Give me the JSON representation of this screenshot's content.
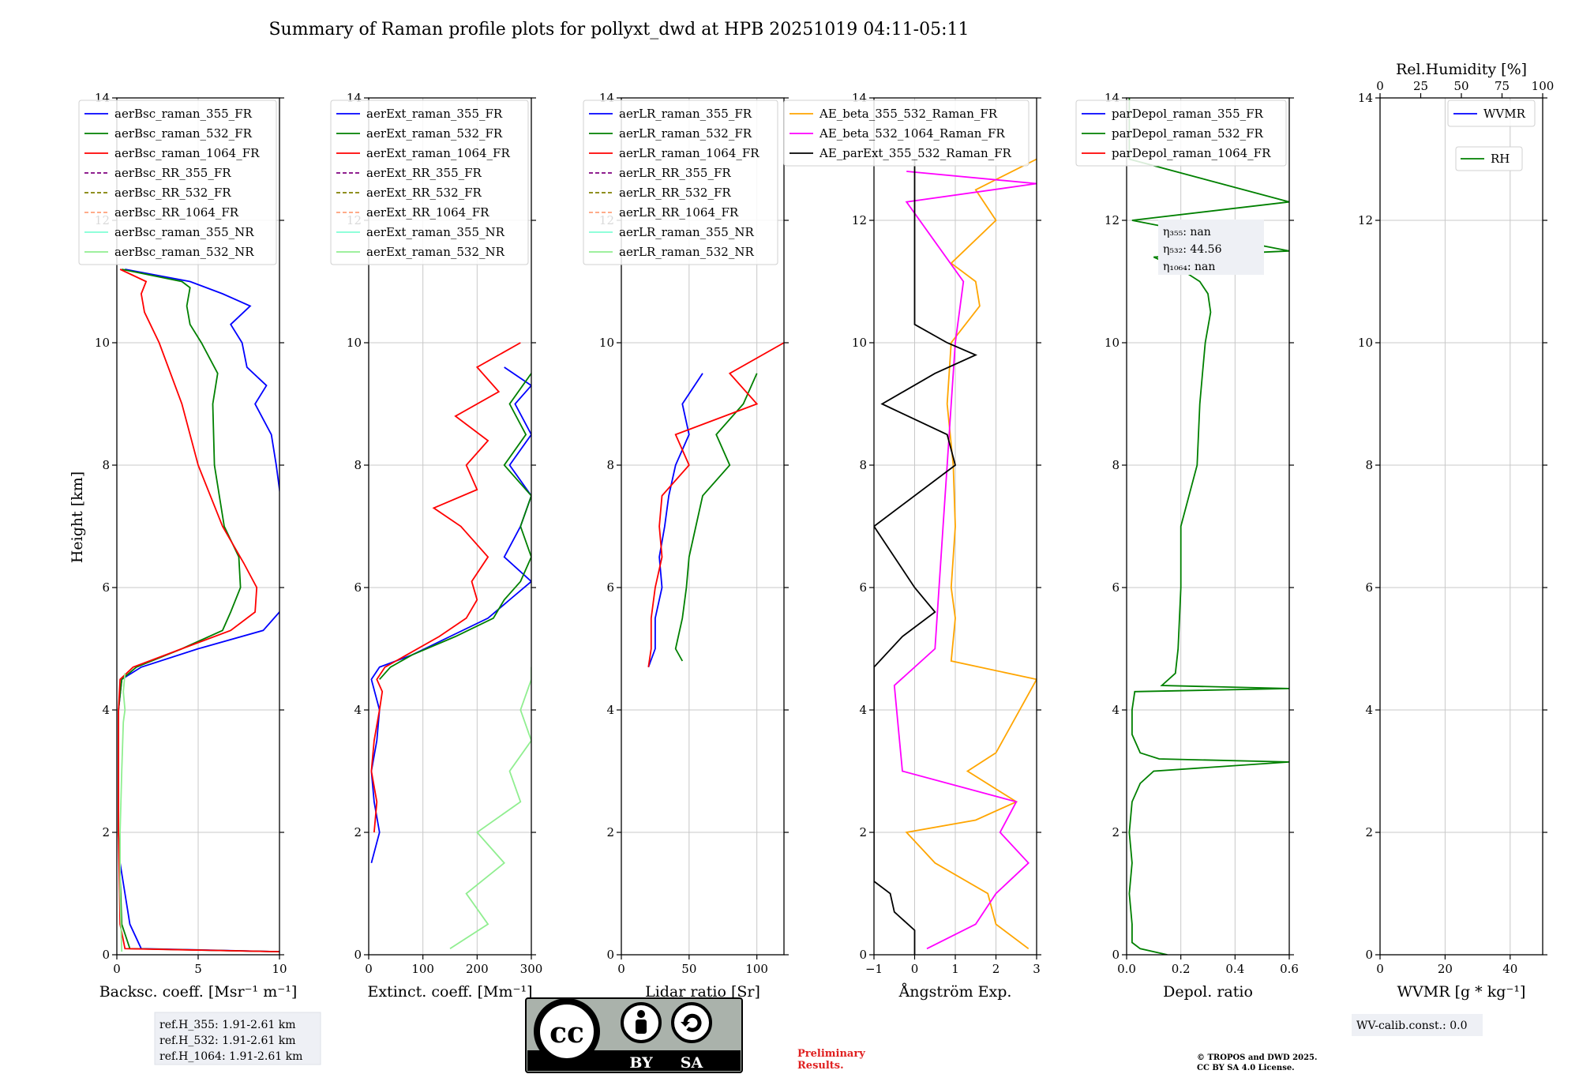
{
  "figure": {
    "title": "Summary of Raman profile plots for pollyxt_dwd at HPB 20251019 04:11-05:11",
    "ylabel": "Height [km]"
  },
  "colors": {
    "c355": "#0000ff",
    "c532": "#008000",
    "c1064": "#ff0000",
    "rr355": "#800080",
    "rr532": "#808000",
    "rr1064": "#ffa07a",
    "nr355": "#7fffd4",
    "nr532": "#90ee90",
    "ae1": "#ffa500",
    "ae2": "#ff00ff",
    "ae3": "#000000"
  },
  "chart_data": [
    {
      "type": "line",
      "id": "bsc",
      "xlabel": "Backsc. coeff. [Msr⁻¹ m⁻¹]",
      "xlim": [
        0,
        10
      ],
      "xticks": [
        "0",
        "5",
        "10"
      ],
      "xtickvals": [
        0,
        5,
        10
      ],
      "ylim": [
        0,
        14
      ],
      "yticks": [
        "0",
        "2",
        "4",
        "6",
        "8",
        "10",
        "12",
        "14"
      ],
      "legend": [
        "aerBsc_raman_355_FR",
        "aerBsc_raman_532_FR",
        "aerBsc_raman_1064_FR",
        "aerBsc_RR_355_FR",
        "aerBsc_RR_532_FR",
        "aerBsc_RR_1064_FR",
        "aerBsc_raman_355_NR",
        "aerBsc_raman_532_NR"
      ],
      "series": [
        {
          "name": "aerBsc_raman_355_FR",
          "h": [
            0.05,
            0.1,
            0.5,
            1.0,
            1.5,
            2,
            3,
            4,
            4.5,
            4.7,
            5.0,
            5.3,
            5.6,
            6,
            7,
            8,
            8.5,
            9,
            9.3,
            9.6,
            10,
            10.3,
            10.6,
            10.8,
            11,
            11.2
          ],
          "v": [
            10,
            1.5,
            0.8,
            0.5,
            0.2,
            0.1,
            0.1,
            0.1,
            0.3,
            1.5,
            5,
            9,
            10,
            10.5,
            10.3,
            9.8,
            9.5,
            8.5,
            9.2,
            8.0,
            7.7,
            7.0,
            8.2,
            6.5,
            4.5,
            0.5
          ]
        },
        {
          "name": "aerBsc_raman_532_FR",
          "h": [
            0.05,
            0.1,
            0.5,
            2,
            4,
            4.5,
            4.7,
            5.0,
            5.3,
            5.6,
            6,
            6.5,
            7,
            8,
            9,
            9.5,
            10,
            10.3,
            10.6,
            10.9,
            11,
            11.2
          ],
          "v": [
            10,
            0.8,
            0.3,
            0.1,
            0.1,
            0.3,
            1.2,
            4.0,
            6.5,
            7.0,
            7.6,
            7.5,
            6.6,
            6.0,
            5.9,
            6.2,
            5.2,
            4.5,
            4.3,
            4.5,
            4.0,
            0.3
          ]
        },
        {
          "name": "aerBsc_raman_1064_FR",
          "h": [
            0.05,
            0.1,
            0.5,
            2,
            4,
            4.5,
            4.7,
            5.0,
            5.3,
            5.6,
            6,
            6.4,
            7,
            8,
            9,
            10,
            10.5,
            10.8,
            11.0,
            11.2
          ],
          "v": [
            10,
            0.5,
            0.2,
            0.1,
            0.1,
            0.2,
            1.0,
            4.0,
            7.0,
            8.5,
            8.6,
            7.8,
            6.5,
            5.0,
            4.0,
            2.6,
            1.7,
            1.5,
            1.8,
            0.2
          ]
        },
        {
          "name": "aerBsc_raman_532_NR",
          "h": [
            0.05,
            1,
            2,
            3,
            3.8,
            4.0,
            4.3,
            4.6
          ],
          "v": [
            0.3,
            0.2,
            0.2,
            0.3,
            0.4,
            0.5,
            0.4,
            0.5
          ]
        }
      ]
    },
    {
      "type": "line",
      "id": "ext",
      "xlabel": "Extinct. coeff. [Mm⁻¹]",
      "xlim": [
        0,
        300
      ],
      "xticks": [
        "0",
        "100",
        "200",
        "300"
      ],
      "xtickvals": [
        0,
        100,
        200,
        300
      ],
      "ylim": [
        0,
        14
      ],
      "yticks": [
        "0",
        "2",
        "4",
        "6",
        "8",
        "10",
        "12",
        "14"
      ],
      "legend": [
        "aerExt_raman_355_FR",
        "aerExt_raman_532_FR",
        "aerExt_raman_1064_FR",
        "aerExt_RR_355_FR",
        "aerExt_RR_532_FR",
        "aerExt_RR_1064_FR",
        "aerExt_raman_355_NR",
        "aerExt_raman_532_NR"
      ],
      "series": [
        {
          "name": "aerExt_raman_355_FR",
          "h": [
            1.5,
            2,
            2.5,
            3,
            3.5,
            4,
            4.5,
            4.7,
            4.9,
            5.2,
            5.5,
            5.8,
            6.1,
            6.5,
            7.0,
            7.5,
            8.0,
            8.5,
            9.0,
            9.3,
            9.6
          ],
          "v": [
            5,
            20,
            10,
            5,
            15,
            20,
            5,
            20,
            80,
            150,
            220,
            260,
            300,
            250,
            280,
            300,
            260,
            300,
            270,
            300,
            250
          ]
        },
        {
          "name": "aerExt_raman_532_FR",
          "h": [
            4.5,
            4.7,
            4.9,
            5.2,
            5.5,
            5.8,
            6.1,
            6.5,
            7.0,
            7.5,
            8.0,
            8.5,
            9.0,
            9.5
          ],
          "v": [
            20,
            40,
            80,
            160,
            230,
            250,
            280,
            300,
            280,
            300,
            250,
            290,
            260,
            300
          ]
        },
        {
          "name": "aerExt_raman_1064_FR",
          "h": [
            2,
            2.5,
            3,
            3.5,
            4,
            4.3,
            4.5,
            4.7,
            4.9,
            5.2,
            5.5,
            5.8,
            6.1,
            6.5,
            7.0,
            7.3,
            7.6,
            8.0,
            8.4,
            8.8,
            9.2,
            9.6,
            10.0
          ],
          "v": [
            10,
            15,
            5,
            10,
            20,
            25,
            15,
            30,
            70,
            130,
            180,
            200,
            190,
            220,
            170,
            120,
            200,
            180,
            220,
            160,
            240,
            200,
            280
          ]
        },
        {
          "name": "aerExt_raman_532_NR",
          "h": [
            0.1,
            0.5,
            1.0,
            1.5,
            2.0,
            2.5,
            3.0,
            3.5,
            4.0,
            4.5,
            4.7
          ],
          "v": [
            150,
            220,
            180,
            250,
            200,
            280,
            260,
            300,
            280,
            300,
            300
          ]
        }
      ]
    },
    {
      "type": "line",
      "id": "lr",
      "xlabel": "Lidar ratio [Sr]",
      "xlim": [
        0,
        120
      ],
      "xticks": [
        "0",
        "50",
        "100"
      ],
      "xtickvals": [
        0,
        50,
        100
      ],
      "ylim": [
        0,
        14
      ],
      "yticks": [
        "0",
        "2",
        "4",
        "6",
        "8",
        "10",
        "12",
        "14"
      ],
      "legend": [
        "aerLR_raman_355_FR",
        "aerLR_raman_532_FR",
        "aerLR_raman_1064_FR",
        "aerLR_RR_355_FR",
        "aerLR_RR_532_FR",
        "aerLR_RR_1064_FR",
        "aerLR_raman_355_NR",
        "aerLR_raman_532_NR"
      ],
      "series": [
        {
          "name": "aerLR_raman_355_FR",
          "h": [
            4.7,
            5.0,
            5.5,
            6.0,
            6.5,
            7.0,
            7.5,
            8.0,
            8.5,
            9.0,
            9.5
          ],
          "v": [
            20,
            25,
            25,
            30,
            28,
            32,
            35,
            40,
            50,
            45,
            60
          ]
        },
        {
          "name": "aerLR_raman_532_FR",
          "h": [
            4.8,
            5.0,
            5.5,
            6.0,
            6.5,
            7.0,
            7.5,
            8.0,
            8.5,
            9.0,
            9.5
          ],
          "v": [
            45,
            40,
            45,
            48,
            50,
            55,
            60,
            80,
            70,
            90,
            100
          ]
        },
        {
          "name": "aerLR_raman_1064_FR",
          "h": [
            4.7,
            5.0,
            5.5,
            6.0,
            6.5,
            7.0,
            7.5,
            8.0,
            8.5,
            9.0,
            9.5,
            10.0
          ],
          "v": [
            20,
            22,
            22,
            25,
            30,
            28,
            30,
            50,
            40,
            100,
            80,
            120
          ]
        }
      ]
    },
    {
      "type": "line",
      "id": "ae",
      "xlabel": "Ångström Exp.",
      "xlim": [
        -1,
        3
      ],
      "xticks": [
        "−1",
        "0",
        "1",
        "2",
        "3"
      ],
      "xtickvals": [
        -1,
        0,
        1,
        2,
        3
      ],
      "ylim": [
        0,
        14
      ],
      "yticks": [
        "0",
        "2",
        "4",
        "6",
        "8",
        "10",
        "12",
        "14"
      ],
      "legend": [
        "AE_beta_355_532_Raman_FR",
        "AE_beta_532_1064_Raman_FR",
        "AE_parExt_355_532_Raman_FR"
      ],
      "series": [
        {
          "name": "AE_beta_355_532_Raman_FR",
          "h": [
            0.1,
            0.5,
            1.0,
            1.5,
            2.0,
            2.2,
            2.5,
            3.0,
            3.3,
            4.5,
            4.8,
            5.5,
            6.0,
            7.0,
            8.0,
            9.0,
            10.0,
            10.6,
            11.0,
            11.3,
            12.0,
            12.5,
            13.0
          ],
          "v": [
            2.8,
            2.0,
            1.8,
            0.5,
            -0.2,
            1.5,
            2.5,
            1.3,
            2.0,
            3.0,
            0.9,
            1.0,
            0.9,
            1.0,
            0.95,
            0.8,
            0.9,
            1.6,
            1.5,
            0.9,
            2.0,
            1.5,
            3.0
          ]
        },
        {
          "name": "AE_beta_532_1064_Raman_FR",
          "h": [
            0.1,
            0.5,
            1.0,
            1.5,
            2.0,
            2.5,
            3.0,
            4.4,
            5.0,
            6.0,
            7.0,
            8.0,
            9.0,
            10.0,
            11.0,
            12.3,
            12.6,
            12.8
          ],
          "v": [
            0.3,
            1.5,
            2.0,
            2.8,
            2.1,
            2.5,
            -0.3,
            -0.5,
            0.5,
            0.6,
            0.7,
            0.8,
            0.9,
            1.0,
            1.2,
            -0.2,
            3.0,
            -0.2
          ]
        },
        {
          "name": "AE_parExt_355_532_Raman_FR",
          "h": [
            0.0,
            0.4,
            0.7,
            1.0,
            1.2,
            4.7,
            5.2,
            5.6,
            6.0,
            7.0,
            8.0,
            8.5,
            9.0,
            9.5,
            9.8,
            10.0,
            10.3,
            13.0
          ],
          "v": [
            0.0,
            0.0,
            -0.5,
            -0.6,
            -1.0,
            -1.0,
            -0.3,
            0.5,
            0.0,
            -1.0,
            1.0,
            0.8,
            -0.8,
            0.5,
            1.5,
            0.8,
            0.0,
            0.0
          ]
        }
      ]
    },
    {
      "type": "line",
      "id": "depol",
      "xlabel": "Depol. ratio",
      "xlim": [
        0,
        0.6
      ],
      "xticks": [
        "0.0",
        "0.2",
        "0.4",
        "0.6"
      ],
      "xtickvals": [
        0,
        0.2,
        0.4,
        0.6
      ],
      "ylim": [
        0,
        14
      ],
      "yticks": [
        "0",
        "2",
        "4",
        "6",
        "8",
        "10",
        "12",
        "14"
      ],
      "legend": [
        "parDepol_raman_355_FR",
        "parDepol_raman_532_FR",
        "parDepol_raman_1064_FR"
      ],
      "annotation": [
        "η₃₅₅: nan",
        "η₅₃₂: 44.56",
        "η₁₀₆₄: nan"
      ],
      "series": [
        {
          "name": "parDepol_raman_532_FR",
          "h": [
            0.0,
            0.1,
            0.2,
            0.5,
            1.0,
            1.5,
            2.0,
            2.5,
            2.8,
            3.0,
            3.15,
            3.2,
            3.3,
            3.6,
            4.0,
            4.3,
            4.35,
            4.4,
            4.6,
            5.0,
            6.0,
            7.0,
            8.0,
            9.0,
            9.5,
            10.0,
            10.5,
            10.8,
            11.0,
            11.2,
            11.4,
            11.5,
            12.0,
            12.3,
            13.0,
            14.0
          ],
          "v": [
            0.15,
            0.05,
            0.02,
            0.02,
            0.01,
            0.02,
            0.01,
            0.02,
            0.05,
            0.1,
            0.6,
            0.12,
            0.05,
            0.02,
            0.02,
            0.03,
            0.6,
            0.13,
            0.18,
            0.19,
            0.2,
            0.2,
            0.26,
            0.27,
            0.28,
            0.29,
            0.31,
            0.3,
            0.27,
            0.2,
            0.1,
            0.6,
            0.02,
            0.6,
            0.01,
            0.01
          ]
        }
      ]
    },
    {
      "type": "line",
      "id": "wv",
      "xlabel": "WVMR [g * kg⁻¹]",
      "xlim": [
        0,
        50
      ],
      "xticks": [
        "0",
        "20",
        "40"
      ],
      "xtickvals": [
        0,
        20,
        40
      ],
      "ylim": [
        0,
        14
      ],
      "yticks": [
        "0",
        "2",
        "4",
        "6",
        "8",
        "10",
        "12",
        "14"
      ],
      "toplabel": "Rel.Humidity [%]",
      "topticks": [
        "0",
        "25",
        "50",
        "75",
        "100"
      ],
      "legend": [
        "WVMR"
      ],
      "legend2": [
        "RH"
      ],
      "series": []
    }
  ],
  "info": {
    "refh": [
      "ref.H_355: 1.91-2.61 km",
      "ref.H_532: 1.91-2.61 km",
      "ref.H_1064: 1.91-2.61 km"
    ],
    "wvcalib": "WV-calib.const.: 0.0",
    "preliminary": [
      "Preliminary",
      "Results."
    ],
    "copyright": [
      "© TROPOS and DWD 2025.",
      "CC BY SA 4.0 License."
    ],
    "cc_badge": [
      "BY",
      "SA"
    ]
  }
}
